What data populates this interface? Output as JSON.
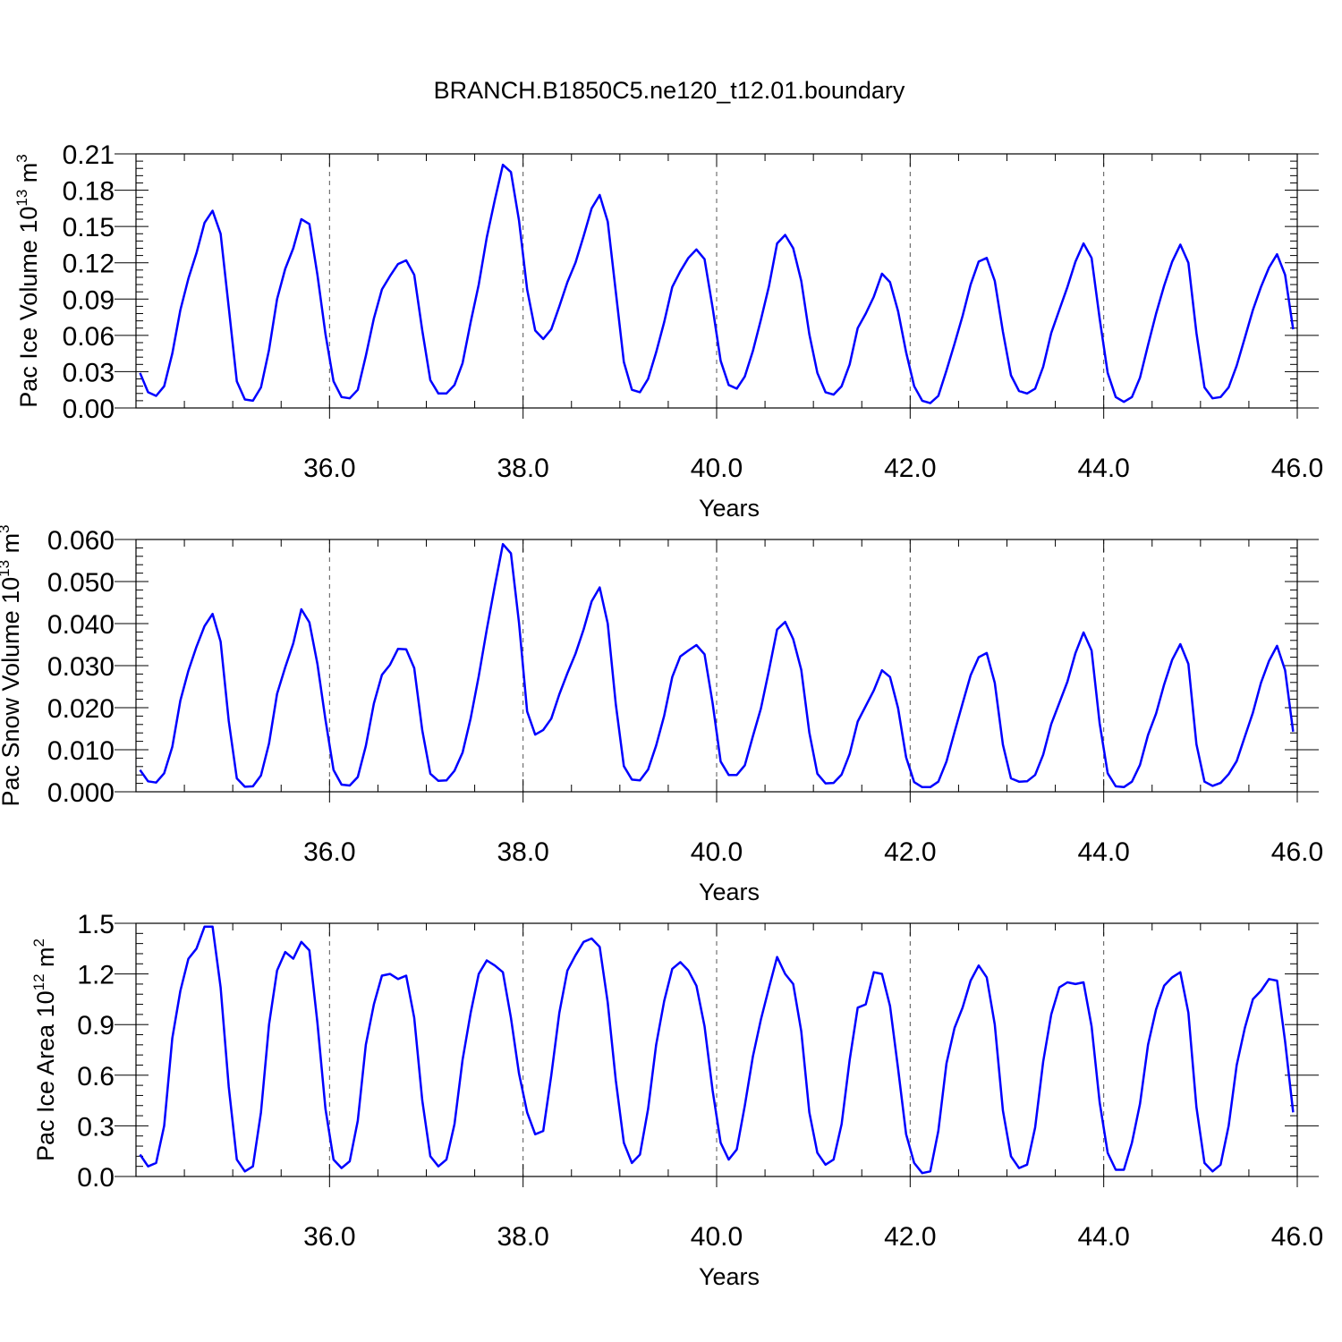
{
  "title": "BRANCH.B1850C5.ne120_t12.01.boundary",
  "colors": {
    "line": "#0000ff",
    "axis": "#000000",
    "grid": "#555555"
  },
  "chart_data": [
    {
      "type": "line",
      "ylabel": "Pac Ice Volume 10",
      "ylabel_exp": "13",
      "ylabel_unit": "m",
      "ylabel_unit_exp": "3",
      "xlabel": "Years",
      "xlim": [
        34.0,
        46.0
      ],
      "ylim": [
        0,
        0.21
      ],
      "yticks": [
        0.0,
        0.03,
        0.06,
        0.09,
        0.12,
        0.15,
        0.18,
        0.21
      ],
      "ytick_labels": [
        "0.00",
        "0.03",
        "0.06",
        "0.09",
        "0.12",
        "0.15",
        "0.18",
        "0.21"
      ],
      "xticks": [
        36,
        38,
        40,
        42,
        44,
        46
      ],
      "xtick_labels": [
        "36.0",
        "38.0",
        "40.0",
        "42.0",
        "44.0",
        "46.0"
      ],
      "grid": "dashed vertical at major x ticks",
      "x_start": 34.0,
      "x_step": 0.08333,
      "values": [
        0.029,
        0.013,
        0.01,
        0.018,
        0.045,
        0.081,
        0.107,
        0.128,
        0.153,
        0.163,
        0.144,
        0.083,
        0.022,
        0.007,
        0.006,
        0.017,
        0.048,
        0.09,
        0.115,
        0.132,
        0.156,
        0.152,
        0.11,
        0.061,
        0.022,
        0.009,
        0.008,
        0.015,
        0.043,
        0.074,
        0.098,
        0.109,
        0.119,
        0.122,
        0.11,
        0.064,
        0.023,
        0.012,
        0.012,
        0.019,
        0.037,
        0.071,
        0.102,
        0.141,
        0.172,
        0.201,
        0.195,
        0.155,
        0.098,
        0.064,
        0.057,
        0.065,
        0.084,
        0.104,
        0.12,
        0.142,
        0.165,
        0.176,
        0.154,
        0.096,
        0.038,
        0.015,
        0.013,
        0.024,
        0.046,
        0.071,
        0.1,
        0.113,
        0.124,
        0.131,
        0.123,
        0.083,
        0.039,
        0.019,
        0.016,
        0.026,
        0.047,
        0.073,
        0.101,
        0.136,
        0.143,
        0.132,
        0.105,
        0.061,
        0.029,
        0.013,
        0.011,
        0.018,
        0.036,
        0.066,
        0.078,
        0.092,
        0.111,
        0.104,
        0.08,
        0.046,
        0.018,
        0.006,
        0.004,
        0.01,
        0.031,
        0.053,
        0.076,
        0.102,
        0.121,
        0.124,
        0.105,
        0.063,
        0.027,
        0.014,
        0.012,
        0.016,
        0.034,
        0.062,
        0.081,
        0.1,
        0.121,
        0.136,
        0.124,
        0.074,
        0.029,
        0.009,
        0.005,
        0.009,
        0.025,
        0.052,
        0.078,
        0.101,
        0.121,
        0.135,
        0.12,
        0.062,
        0.017,
        0.008,
        0.009,
        0.017,
        0.035,
        0.058,
        0.081,
        0.1,
        0.116,
        0.127,
        0.11,
        0.065
      ]
    },
    {
      "type": "line",
      "ylabel": "Pac Snow Volume 10",
      "ylabel_exp": "13",
      "ylabel_unit": "m",
      "ylabel_unit_exp": "3",
      "xlabel": "Years",
      "xlim": [
        34.0,
        46.0
      ],
      "ylim": [
        0,
        0.06
      ],
      "yticks": [
        0.0,
        0.01,
        0.02,
        0.03,
        0.04,
        0.05,
        0.06
      ],
      "ytick_labels": [
        "0.000",
        "0.010",
        "0.020",
        "0.030",
        "0.040",
        "0.050",
        "0.060"
      ],
      "xticks": [
        36,
        38,
        40,
        42,
        44,
        46
      ],
      "xtick_labels": [
        "36.0",
        "38.0",
        "40.0",
        "42.0",
        "44.0",
        "46.0"
      ],
      "grid": "dashed vertical at major x ticks",
      "x_start": 34.0,
      "x_step": 0.08333,
      "values": [
        0.0052,
        0.0025,
        0.0022,
        0.0044,
        0.0107,
        0.0217,
        0.0288,
        0.0345,
        0.0394,
        0.0423,
        0.0357,
        0.0168,
        0.0032,
        0.0012,
        0.0013,
        0.0039,
        0.0115,
        0.0233,
        0.0296,
        0.0353,
        0.0434,
        0.0403,
        0.0304,
        0.0171,
        0.0052,
        0.0017,
        0.0015,
        0.0035,
        0.0109,
        0.021,
        0.0278,
        0.0302,
        0.034,
        0.0339,
        0.0294,
        0.0146,
        0.0043,
        0.0026,
        0.0027,
        0.005,
        0.0093,
        0.0175,
        0.0275,
        0.0386,
        0.049,
        0.0589,
        0.0567,
        0.0402,
        0.0191,
        0.0136,
        0.0147,
        0.0174,
        0.0232,
        0.0282,
        0.0328,
        0.0386,
        0.0453,
        0.0486,
        0.04,
        0.0208,
        0.0061,
        0.0029,
        0.0027,
        0.0053,
        0.011,
        0.0181,
        0.0273,
        0.0322,
        0.0336,
        0.0349,
        0.0327,
        0.0211,
        0.0072,
        0.004,
        0.004,
        0.0063,
        0.0132,
        0.0198,
        0.029,
        0.0386,
        0.0404,
        0.0363,
        0.029,
        0.0141,
        0.0043,
        0.002,
        0.0021,
        0.0041,
        0.009,
        0.0167,
        0.0204,
        0.0241,
        0.0289,
        0.0273,
        0.0199,
        0.0082,
        0.0023,
        0.0011,
        0.0011,
        0.0024,
        0.0072,
        0.0142,
        0.021,
        0.0277,
        0.032,
        0.033,
        0.0259,
        0.0112,
        0.0032,
        0.0024,
        0.0025,
        0.004,
        0.0088,
        0.0161,
        0.0211,
        0.0262,
        0.033,
        0.0379,
        0.0336,
        0.0163,
        0.0044,
        0.0013,
        0.0011,
        0.0024,
        0.0064,
        0.0135,
        0.0186,
        0.0255,
        0.0314,
        0.0351,
        0.0304,
        0.0113,
        0.0024,
        0.0014,
        0.0021,
        0.0042,
        0.0073,
        0.0131,
        0.0188,
        0.0259,
        0.0311,
        0.0347,
        0.0289,
        0.0143
      ]
    },
    {
      "type": "line",
      "ylabel": "Pac Ice Area 10",
      "ylabel_exp": "12",
      "ylabel_unit": "m",
      "ylabel_unit_exp": "2",
      "xlabel": "Years",
      "xlim": [
        34.0,
        46.0
      ],
      "ylim": [
        0,
        1.5
      ],
      "yticks": [
        0.0,
        0.3,
        0.6,
        0.9,
        1.2,
        1.5
      ],
      "ytick_labels": [
        "0.0",
        "0.3",
        "0.6",
        "0.9",
        "1.2",
        "1.5"
      ],
      "xticks": [
        36,
        38,
        40,
        42,
        44,
        46
      ],
      "xtick_labels": [
        "36.0",
        "38.0",
        "40.0",
        "42.0",
        "44.0",
        "46.0"
      ],
      "grid": "dashed vertical at major x ticks",
      "x_start": 34.0,
      "x_step": 0.08333,
      "values": [
        0.13,
        0.06,
        0.08,
        0.3,
        0.82,
        1.1,
        1.29,
        1.35,
        1.48,
        1.48,
        1.12,
        0.53,
        0.1,
        0.03,
        0.06,
        0.38,
        0.9,
        1.22,
        1.33,
        1.29,
        1.39,
        1.34,
        0.91,
        0.4,
        0.1,
        0.05,
        0.09,
        0.33,
        0.78,
        1.02,
        1.19,
        1.2,
        1.17,
        1.19,
        0.94,
        0.45,
        0.12,
        0.06,
        0.1,
        0.31,
        0.69,
        0.97,
        1.2,
        1.28,
        1.25,
        1.21,
        0.94,
        0.61,
        0.38,
        0.25,
        0.27,
        0.6,
        0.97,
        1.22,
        1.31,
        1.39,
        1.41,
        1.36,
        1.03,
        0.57,
        0.2,
        0.08,
        0.13,
        0.4,
        0.78,
        1.04,
        1.23,
        1.27,
        1.22,
        1.13,
        0.89,
        0.51,
        0.2,
        0.1,
        0.16,
        0.42,
        0.71,
        0.93,
        1.12,
        1.3,
        1.2,
        1.14,
        0.86,
        0.38,
        0.14,
        0.07,
        0.1,
        0.31,
        0.69,
        1.0,
        1.02,
        1.21,
        1.2,
        1.01,
        0.64,
        0.25,
        0.08,
        0.02,
        0.03,
        0.27,
        0.67,
        0.88,
        1.0,
        1.16,
        1.25,
        1.18,
        0.9,
        0.39,
        0.12,
        0.05,
        0.07,
        0.29,
        0.68,
        0.96,
        1.12,
        1.15,
        1.14,
        1.15,
        0.89,
        0.44,
        0.14,
        0.04,
        0.04,
        0.2,
        0.43,
        0.78,
        0.99,
        1.13,
        1.18,
        1.21,
        0.97,
        0.41,
        0.08,
        0.03,
        0.07,
        0.3,
        0.66,
        0.88,
        1.05,
        1.1,
        1.17,
        1.16,
        0.8,
        0.38
      ]
    }
  ]
}
